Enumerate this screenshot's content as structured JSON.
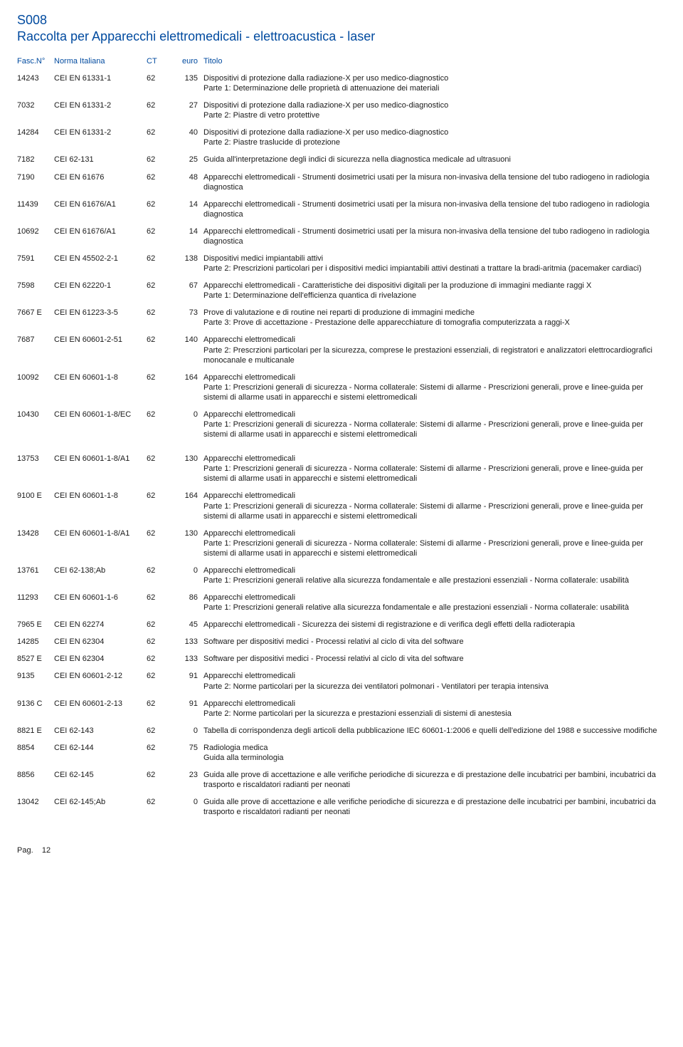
{
  "doc_code": "S008",
  "doc_title": "Raccolta per Apparecchi elettromedicali - elettroacustica - laser",
  "headers": {
    "fasc": "Fasc.N°",
    "norma": "Norma Italiana",
    "ct": "CT",
    "euro": "euro",
    "titolo": "Titolo"
  },
  "rows": [
    {
      "fasc": "14243",
      "norma": "CEI EN 61331-1",
      "ct": "62",
      "euro": "135",
      "titolo": "Dispositivi di protezione dalla radiazione-X per uso medico-diagnostico\nParte 1: Determinazione delle proprietà di attenuazione dei materiali"
    },
    {
      "fasc": "7032",
      "norma": "CEI EN 61331-2",
      "ct": "62",
      "euro": "27",
      "titolo": "Dispositivi di protezione dalla radiazione-X per uso medico-diagnostico\nParte 2: Piastre di vetro protettive"
    },
    {
      "fasc": "14284",
      "norma": "CEI EN 61331-2",
      "ct": "62",
      "euro": "40",
      "titolo": "Dispositivi di protezione dalla radiazione-X per uso medico-diagnostico\nParte 2: Piastre traslucide di protezione"
    },
    {
      "fasc": "7182",
      "norma": "CEI 62-131",
      "ct": "62",
      "euro": "25",
      "titolo": "Guida all'interpretazione degli indici di sicurezza nella diagnostica medicale ad ultrasuoni"
    },
    {
      "fasc": "7190",
      "norma": "CEI EN 61676",
      "ct": "62",
      "euro": "48",
      "titolo": "Apparecchi elettromedicali - Strumenti dosimetrici usati per la misura non-invasiva della tensione del tubo radiogeno in radiologia diagnostica"
    },
    {
      "fasc": "11439",
      "norma": "CEI EN 61676/A1",
      "ct": "62",
      "euro": "14",
      "titolo": "Apparecchi elettromedicali - Strumenti dosimetrici usati per la misura non-invasiva della tensione del tubo radiogeno in radiologia diagnostica"
    },
    {
      "fasc": "10692",
      "norma": "CEI EN 61676/A1",
      "ct": "62",
      "euro": "14",
      "titolo": "Apparecchi elettromedicali - Strumenti dosimetrici usati per la misura non-invasiva della tensione del tubo radiogeno in radiologia diagnostica"
    },
    {
      "fasc": "7591",
      "norma": "CEI EN 45502-2-1",
      "ct": "62",
      "euro": "138",
      "titolo": "Dispositivi medici impiantabili attivi\nParte 2: Prescrizioni particolari per i dispositivi medici impiantabili attivi destinati a trattare la bradi-aritmia (pacemaker cardiaci)"
    },
    {
      "fasc": "7598",
      "norma": "CEI EN 62220-1",
      "ct": "62",
      "euro": "67",
      "titolo": "Apparecchi elettromedicali - Caratteristiche dei dispositivi digitali per la produzione di immagini mediante raggi X\nParte 1: Determinazione dell'efficienza quantica di rivelazione"
    },
    {
      "fasc": "7667 E",
      "norma": "CEI EN 61223-3-5",
      "ct": "62",
      "euro": "73",
      "titolo": "Prove di valutazione e di routine nei reparti di produzione di immagini mediche\nParte 3: Prove di accettazione - Prestazione delle apparecchiature di tomografia computerizzata a raggi-X"
    },
    {
      "fasc": "7687",
      "norma": "CEI EN 60601-2-51",
      "ct": "62",
      "euro": "140",
      "titolo": "Apparecchi elettromedicali\nParte 2: Prescrzioni particolari per la sicurezza, comprese le prestazioni essenziali, di registratori e analizzatori elettrocardiografici monocanale e multicanale"
    },
    {
      "fasc": "10092",
      "norma": "CEI EN 60601-1-8",
      "ct": "62",
      "euro": "164",
      "titolo": "Apparecchi elettromedicali\nParte 1: Prescrizioni generali di sicurezza - Norma collaterale: Sistemi di allarme - Prescrizioni generali, prove e linee-guida per sistemi di allarme usati in apparecchi e sistemi elettromedicali"
    },
    {
      "fasc": "10430",
      "norma": "CEI EN 60601-1-8/EC",
      "ct": "62",
      "euro": "0",
      "titolo": "Apparecchi elettromedicali\nParte 1: Prescrizioni generali di sicurezza - Norma collaterale: Sistemi di allarme - Prescrizioni generali, prove e linee-guida per sistemi di allarme usati in apparecchi e sistemi elettromedicali",
      "gap_after": true
    },
    {
      "fasc": "13753",
      "norma": "CEI EN 60601-1-8/A1",
      "ct": "62",
      "euro": "130",
      "titolo": "Apparecchi elettromedicali\nParte 1: Prescrizioni generali di sicurezza - Norma collaterale: Sistemi di allarme - Prescrizioni generali, prove e linee-guida per sistemi di allarme usati in apparecchi e sistemi elettromedicali"
    },
    {
      "fasc": "9100 E",
      "norma": "CEI EN 60601-1-8",
      "ct": "62",
      "euro": "164",
      "titolo": "Apparecchi elettromedicali\nParte 1: Prescrizioni generali di sicurezza - Norma collaterale: Sistemi di allarme - Prescrizioni generali, prove e linee-guida per sistemi di allarme usati in apparecchi e sistemi elettromedicali"
    },
    {
      "fasc": "13428",
      "norma": "CEI EN 60601-1-8/A1",
      "ct": "62",
      "euro": "130",
      "titolo": "Apparecchi elettromedicali\nParte 1: Prescrizioni generali di sicurezza - Norma collaterale: Sistemi di allarme - Prescrizioni generali, prove e linee-guida per sistemi di allarme usati in apparecchi e sistemi elettromedicali"
    },
    {
      "fasc": "13761",
      "norma": "CEI 62-138;Ab",
      "ct": "62",
      "euro": "0",
      "titolo": "Apparecchi elettromedicali\nParte 1: Prescrizioni generali relative alla sicurezza fondamentale e alle prestazioni essenziali - Norma collaterale: usabilità"
    },
    {
      "fasc": "11293",
      "norma": "CEI EN 60601-1-6",
      "ct": "62",
      "euro": "86",
      "titolo": "Apparecchi elettromedicali\nParte 1: Prescrizioni generali relative alla sicurezza fondamentale e alle prestazioni essenziali - Norma collaterale: usabilità"
    },
    {
      "fasc": "7965 E",
      "norma": "CEI EN 62274",
      "ct": "62",
      "euro": "45",
      "titolo": "Apparecchi elettromedicali - Sicurezza dei sistemi di registrazione e di verifica degli effetti della radioterapia"
    },
    {
      "fasc": "14285",
      "norma": "CEI EN 62304",
      "ct": "62",
      "euro": "133",
      "titolo": "Software per dispositivi medici - Processi relativi al ciclo di vita del software"
    },
    {
      "fasc": "8527 E",
      "norma": "CEI EN 62304",
      "ct": "62",
      "euro": "133",
      "titolo": "Software per dispositivi medici - Processi relativi al ciclo di vita del software"
    },
    {
      "fasc": "9135",
      "norma": "CEI EN 60601-2-12",
      "ct": "62",
      "euro": "91",
      "titolo": "Apparecchi elettromedicali\nParte 2: Norme particolari per la sicurezza dei ventilatori polmonari - Ventilatori per terapia intensiva"
    },
    {
      "fasc": "9136 C",
      "norma": "CEI EN 60601-2-13",
      "ct": "62",
      "euro": "91",
      "titolo": "Apparecchi elettromedicali\nParte 2: Norme particolari per la sicurezza e prestazioni essenziali di sistemi di anestesia"
    },
    {
      "fasc": "8821 E",
      "norma": "CEI 62-143",
      "ct": "62",
      "euro": "0",
      "titolo": "Tabella di corrispondenza degli articoli della pubblicazione IEC 60601-1:2006 e quelli dell'edizione del 1988 e successive modifiche"
    },
    {
      "fasc": "8854",
      "norma": "CEI 62-144",
      "ct": "62",
      "euro": "75",
      "titolo": "Radiologia medica\nGuida alla terminologia"
    },
    {
      "fasc": "8856",
      "norma": "CEI 62-145",
      "ct": "62",
      "euro": "23",
      "titolo": "Guida alle prove di accettazione e alle verifiche periodiche di sicurezza e di prestazione delle incubatrici per bambini, incubatrici da trasporto e riscaldatori radianti per neonati"
    },
    {
      "fasc": "13042",
      "norma": "CEI 62-145;Ab",
      "ct": "62",
      "euro": "0",
      "titolo": "Guida alle prove di accettazione e alle verifiche periodiche di sicurezza e di prestazione delle incubatrici per bambini, incubatrici da trasporto e riscaldatori radianti per neonati"
    }
  ],
  "footer": {
    "label": "Pag.",
    "num": "12"
  }
}
